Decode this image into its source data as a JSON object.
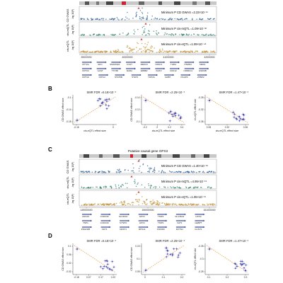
{
  "panels": {
    "A": {
      "letter": "",
      "track_labels": [
        "CD GWAS",
        "cis-mQTL",
        "cis-eQTL"
      ],
      "axis_label": "-log 10(P)",
      "annotations": [
        "Minimum P CD GWAS =2.23×10⁻¹¹",
        "Minimum P cis-mQTL =1.09×10⁻³²",
        "Minimum P cis-eQTL =1.09×10⁻⁴⁶"
      ],
      "x_ticks": [
        "39000000",
        "40000000",
        "41000000",
        "42000000"
      ],
      "genes_row1": [
        "KPT2A",
        "EIF1",
        "SMARCE1",
        "CCR7",
        "MED24",
        "NR1D1",
        "THRA",
        "PSMD3",
        "MED1"
      ],
      "genes_row2": [
        "KRT23",
        "GAST",
        "TTC58",
        "RARA",
        "ERBB2",
        "IKZF3",
        "CDK12",
        "ORMDL3",
        "GSDMB"
      ],
      "genes_row3": [
        "KRT10",
        "KRT12",
        "STAT5B",
        "STAT3",
        "TOP2A",
        "GRB7",
        "PGAP3",
        "ZPBP2"
      ]
    },
    "B": {
      "letter": "B",
      "titles": [
        "SMR FDR =6.18×10⁻³",
        "SMR FDR =2.25×10⁻³",
        "SMR FDR =1.47×10⁻³"
      ],
      "xlabels": [
        "cis-eQTL effect size",
        "cis-mQTL effect size",
        "cis-mQTL effect size"
      ],
      "ylabels": [
        "CD GWAS effect size",
        "CD GWAS effect size",
        "cis-eQTL effect size"
      ],
      "x_ticks": [
        [
          "-0.16",
          "0"
        ],
        [
          "-0.2",
          "0",
          "0.2",
          "0.4"
        ],
        [
          "0.28",
          "0.32",
          "0.36"
        ]
      ],
      "y_ticks": [
        [
          "-0.1",
          "-0.14",
          "-0.18"
        ],
        [
          "-0.14",
          "-0.12",
          "-0.1"
        ],
        [
          "-0.28",
          "-0.32",
          "-0.36"
        ]
      ]
    },
    "C": {
      "letter": "C",
      "header": "Putative causal gene GPX3",
      "track_labels": [
        "CD GWAS",
        "cis-mQTL",
        "cis-eQTL"
      ],
      "axis_label": "-log 10(P)",
      "annotations": [
        "Minimum P CD GWAS =1.40×10⁻¹⁵",
        "Minimum P cis-mQTL =4.95×10⁻¹⁹",
        "Minimum P cis-eQTL =1.05×10⁻¹⁹"
      ],
      "x_ticks": [
        "149000000",
        "150000000",
        "151000000"
      ],
      "genes_row1": [
        "ANXA6",
        "CCDC69",
        "SLC36A1",
        "GPX3",
        "TNIP1",
        "SLC36A2",
        "HCN3"
      ],
      "genes_row2": [
        "TNP1",
        "CCDC69",
        "SYNPO",
        "GPX3",
        "TNIP1",
        "FAT2",
        "GEBPT"
      ],
      "genes_row3": [
        "PDGFRB",
        "CD74",
        "NDST1",
        "RPS14",
        "ZNF300",
        "DCTN4",
        "CLINT1"
      ]
    },
    "D": {
      "letter": "D",
      "titles": [
        "SMR FDR =6.18×10⁻³",
        "SMR FDR =2.25×10⁻³",
        "SMR FDR =1.47×10⁻³"
      ],
      "ylabels": [
        "CD GWAS effect size",
        "CD GWAS effect size",
        "cis-eQTL effect size"
      ],
      "x_ticks": [
        [
          "-0.18",
          "0.07",
          "0.17",
          "0.22"
        ],
        [
          "0",
          "0.1",
          "0.2"
        ],
        [
          "0.1",
          "0.2",
          "0.3"
        ]
      ],
      "y_ticks": [
        [
          "0.1",
          "0.06",
          "0.02",
          "-0.02"
        ],
        [
          "0.15",
          "0.1",
          "0.05"
        ],
        [
          "-0.35",
          "-0.3",
          "-0.25"
        ]
      ]
    }
  },
  "colors": {
    "gwas": "#3f6f9e",
    "mqtl": "#3f8a7a",
    "eqtl": "#c79a44",
    "gene": "#2b3a8c",
    "lead": "#d63a3a",
    "fit": "#e8a65a",
    "scatter": "#3a3aa8"
  }
}
